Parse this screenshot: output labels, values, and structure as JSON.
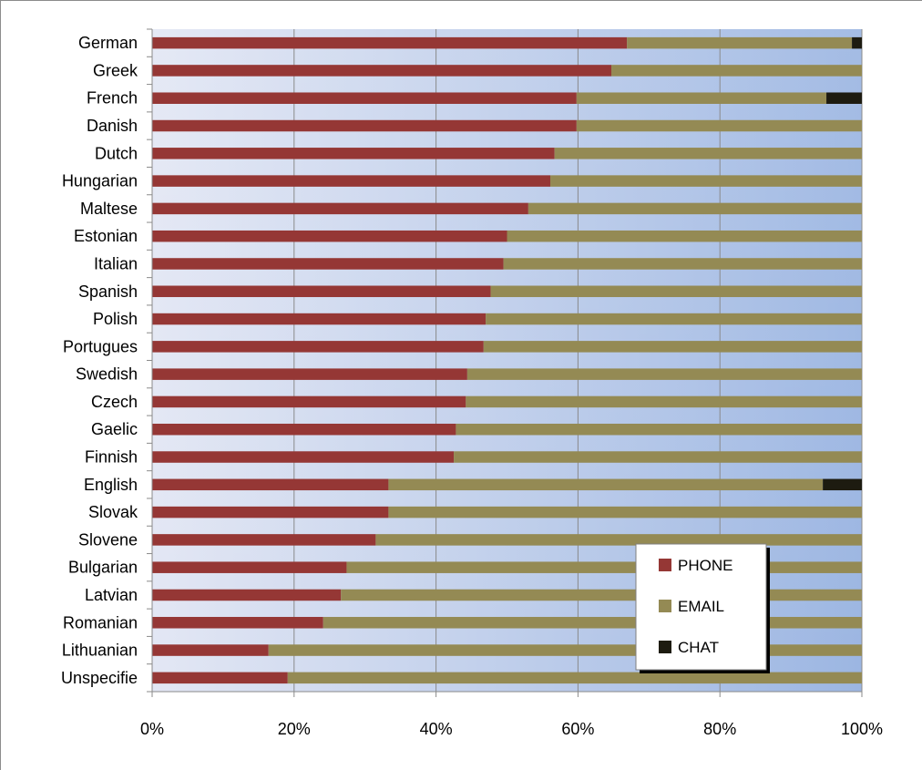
{
  "chart_data": {
    "type": "bar",
    "orientation": "horizontal",
    "stacking": "percent",
    "categories": [
      "German",
      "Greek",
      "French",
      "Danish",
      "Dutch",
      "Hungarian",
      "Maltese",
      "Estonian",
      "Italian",
      "Spanish",
      "Polish",
      "Portugues",
      "Swedish",
      "Czech",
      "Gaelic",
      "Finnish",
      "English",
      "Slovak",
      "Slovene",
      "Bulgarian",
      "Latvian",
      "Romanian",
      "Lithuanian",
      "Unspecifie"
    ],
    "series": [
      {
        "name": "PHONE",
        "color": "#953735",
        "values": [
          66.9,
          64.7,
          59.8,
          59.8,
          56.7,
          56.1,
          53.0,
          50.0,
          49.5,
          47.7,
          47.0,
          46.7,
          44.4,
          44.2,
          42.8,
          42.5,
          33.3,
          33.3,
          31.5,
          27.4,
          26.6,
          24.1,
          16.4,
          19.1
        ]
      },
      {
        "name": "EMAIL",
        "color": "#948A54",
        "values": [
          31.7,
          35.3,
          35.2,
          40.2,
          43.3,
          43.9,
          47.0,
          50.0,
          50.5,
          52.3,
          53.0,
          53.3,
          55.6,
          55.8,
          57.2,
          57.5,
          61.2,
          66.7,
          68.5,
          72.6,
          73.4,
          75.9,
          83.6,
          80.9
        ]
      },
      {
        "name": "CHAT",
        "color": "#1d1b10",
        "values": [
          1.4,
          0,
          5.0,
          0,
          0,
          0,
          0,
          0,
          0,
          0,
          0,
          0,
          0,
          0,
          0,
          0,
          5.5,
          0,
          0,
          0,
          0,
          0,
          0,
          0
        ]
      }
    ],
    "xticks": [
      "0%",
      "20%",
      "40%",
      "60%",
      "80%",
      "100%"
    ],
    "xlim": [
      0,
      100
    ],
    "title": "",
    "xlabel": "",
    "ylabel": "",
    "grid": "vertical",
    "legend_position": "bottom-right inside plot",
    "plot_background": "gradient light lavender to light blue"
  }
}
